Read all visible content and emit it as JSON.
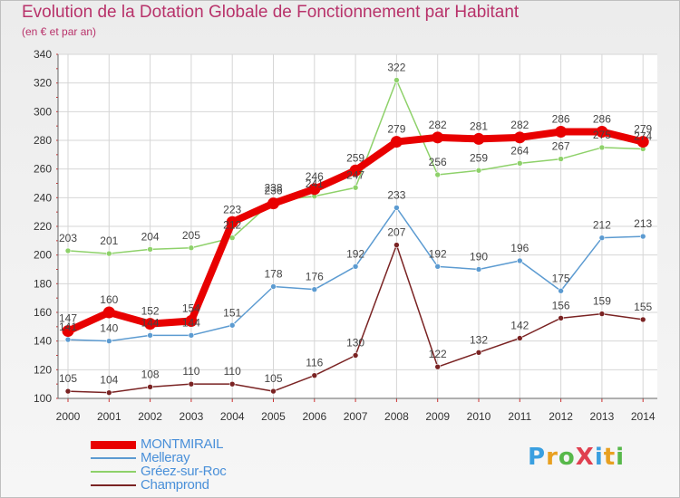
{
  "title": "Evolution de la Dotation Globale de Fonctionnement par Habitant",
  "subtitle": "(en € et par an)",
  "logo": {
    "text": "ProXiti",
    "colors": [
      "#3a9fe0",
      "#e8a020",
      "#57b84a",
      "#e04050",
      "#3a9fe0",
      "#e8a020",
      "#57b84a"
    ]
  },
  "chart_data": {
    "type": "line",
    "categories": [
      "2000",
      "2001",
      "2002",
      "2003",
      "2004",
      "2005",
      "2006",
      "2007",
      "2008",
      "2009",
      "2010",
      "2011",
      "2012",
      "2013",
      "2014"
    ],
    "ylim": [
      100,
      340
    ],
    "yticks": [
      "100",
      "120",
      "140",
      "160",
      "180",
      "200",
      "220",
      "240",
      "260",
      "280",
      "300",
      "320",
      "340"
    ],
    "grid": true,
    "legend_position": "bottom-left",
    "series": [
      {
        "name": "Champrond",
        "color": "#7a2323",
        "values": [
          105,
          104,
          108,
          110,
          110,
          105,
          116,
          130,
          207,
          122,
          132,
          142,
          156,
          159,
          155
        ],
        "labels": [
          "105",
          "104",
          "108",
          "110",
          "110",
          "105",
          "116",
          "130",
          "207",
          "122",
          "132",
          "142",
          "156",
          "159",
          "155"
        ]
      },
      {
        "name": "Melleray",
        "color": "#5c9bd1",
        "values": [
          141,
          140,
          144,
          144,
          151,
          178,
          176,
          192,
          233,
          192,
          190,
          196,
          175,
          212,
          213
        ],
        "labels": [
          "141",
          "140",
          "144",
          "144",
          "151",
          "178",
          "176",
          "192",
          "233",
          "192",
          "190",
          "196",
          "175",
          "212",
          "213"
        ]
      },
      {
        "name": "Gréez-sur-Roc",
        "color": "#8ed16a",
        "values": [
          203,
          201,
          204,
          205,
          212,
          238,
          241,
          247,
          322,
          256,
          259,
          264,
          267,
          275,
          274
        ],
        "labels": [
          "203",
          "201",
          "204",
          "205",
          "212",
          "238",
          "241",
          "247",
          "322",
          "256",
          "259",
          "264",
          "267",
          "275",
          "274"
        ]
      },
      {
        "name": "MONTMIRAIL",
        "color": "#e80000",
        "values": [
          147,
          160,
          152,
          154,
          223,
          236,
          246,
          259,
          279,
          282,
          281,
          282,
          286,
          286,
          279
        ],
        "labels": [
          "147",
          "160",
          "152",
          "154",
          "223",
          "236",
          "246",
          "259",
          "279",
          "282",
          "281",
          "282",
          "286",
          "286",
          "279"
        ]
      }
    ]
  },
  "legend": [
    {
      "name": "MONTMIRAIL",
      "color": "#e80000",
      "thickness": 9
    },
    {
      "name": "Melleray",
      "color": "#5c9bd1",
      "thickness": 2
    },
    {
      "name": "Gréez-sur-Roc",
      "color": "#8ed16a",
      "thickness": 2
    },
    {
      "name": "Champrond",
      "color": "#7a2323",
      "thickness": 2
    }
  ]
}
